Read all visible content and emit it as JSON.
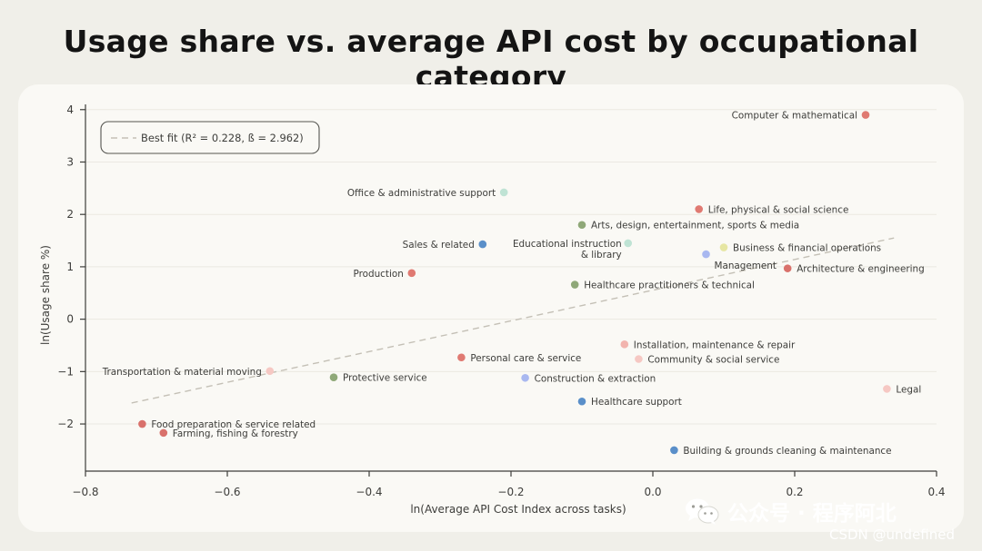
{
  "chart_data": {
    "type": "scatter",
    "title": "Usage share vs. average API cost by occupational category",
    "xlabel": "ln(Average API Cost Index across tasks)",
    "ylabel": "ln(Usage share %)",
    "xlim": [
      -0.8,
      0.4
    ],
    "ylim": [
      -2.9,
      4.1
    ],
    "xticks": [
      -0.8,
      -0.6,
      -0.4,
      -0.2,
      0.0,
      0.2,
      0.4
    ],
    "xtick_labels": [
      "−0.8",
      "−0.6",
      "−0.4",
      "−0.2",
      "0.0",
      "0.2",
      "0.4"
    ],
    "yticks": [
      -2,
      -1,
      0,
      1,
      2,
      3,
      4
    ],
    "ytick_labels": [
      "−2",
      "−1",
      "0",
      "1",
      "2",
      "3",
      "4"
    ],
    "grid": true,
    "legend": {
      "position": "top-left",
      "entries": [
        "Best fit (R² = 0.228, ß = 2.962)"
      ]
    },
    "best_fit": {
      "r2": 0.228,
      "beta": 2.962,
      "x_range": [
        -0.735,
        0.34
      ],
      "y_start": -1.6,
      "y_end": 1.55,
      "color": "#c4c0b6"
    },
    "points": [
      {
        "label": "Computer & mathematical",
        "x": 0.3,
        "y": 3.9,
        "color": "#e07a72",
        "label_side": "left"
      },
      {
        "label": "Office & administrative support",
        "x": -0.21,
        "y": 2.42,
        "color": "#bfe3d4",
        "label_side": "left"
      },
      {
        "label": "Life, physical & social science",
        "x": 0.065,
        "y": 2.1,
        "color": "#e07a72",
        "label_side": "right"
      },
      {
        "label": "Arts, design, entertainment, sports & media",
        "x": -0.1,
        "y": 1.8,
        "color": "#8fa878",
        "label_side": "right"
      },
      {
        "label": "Sales & related",
        "x": -0.24,
        "y": 1.43,
        "color": "#5a8fc9",
        "label_side": "left"
      },
      {
        "label": "Educational instruction\n& library",
        "x": -0.035,
        "y": 1.45,
        "color": "#bfe3d4",
        "label_side": "left"
      },
      {
        "label": "Business & financial operations",
        "x": 0.1,
        "y": 1.37,
        "color": "#e6e6a3",
        "label_side": "right"
      },
      {
        "label": "Management",
        "x": 0.075,
        "y": 1.24,
        "color": "#a9b8f0",
        "label_side": "right-below"
      },
      {
        "label": "Production",
        "x": -0.34,
        "y": 0.88,
        "color": "#e07a72",
        "label_side": "left"
      },
      {
        "label": "Architecture & engineering",
        "x": 0.19,
        "y": 0.97,
        "color": "#d9716b",
        "label_side": "right"
      },
      {
        "label": "Healthcare practitioners & technical",
        "x": -0.11,
        "y": 0.66,
        "color": "#8fa878",
        "label_side": "right"
      },
      {
        "label": "Installation, maintenance & repair",
        "x": -0.04,
        "y": -0.48,
        "color": "#f2b4ae",
        "label_side": "right"
      },
      {
        "label": "Personal care & service",
        "x": -0.27,
        "y": -0.73,
        "color": "#e07a72",
        "label_side": "right"
      },
      {
        "label": "Community & social service",
        "x": -0.02,
        "y": -0.76,
        "color": "#f6c8c3",
        "label_side": "right"
      },
      {
        "label": "Transportation & material moving",
        "x": -0.54,
        "y": -0.99,
        "color": "#f6c8c3",
        "label_side": "left"
      },
      {
        "label": "Protective service",
        "x": -0.45,
        "y": -1.11,
        "color": "#8fa878",
        "label_side": "right"
      },
      {
        "label": "Construction & extraction",
        "x": -0.18,
        "y": -1.12,
        "color": "#a9b8f0",
        "label_side": "right"
      },
      {
        "label": "Legal",
        "x": 0.33,
        "y": -1.33,
        "color": "#f6c8c3",
        "label_side": "right"
      },
      {
        "label": "Healthcare support",
        "x": -0.1,
        "y": -1.57,
        "color": "#5a8fc9",
        "label_side": "right"
      },
      {
        "label": "Food preparation & service related",
        "x": -0.72,
        "y": -2.0,
        "color": "#d9716b",
        "label_side": "right"
      },
      {
        "label": "Farming, fishing & forestry",
        "x": -0.69,
        "y": -2.17,
        "color": "#d9716b",
        "label_side": "right"
      },
      {
        "label": "Building & grounds cleaning & maintenance",
        "x": 0.03,
        "y": -2.5,
        "color": "#5a8fc9",
        "label_side": "right"
      }
    ]
  },
  "watermark": {
    "brand": "公众号 · 程序阿北",
    "csdn": "CSDN @undefined",
    "icon": "wechat-icon"
  }
}
